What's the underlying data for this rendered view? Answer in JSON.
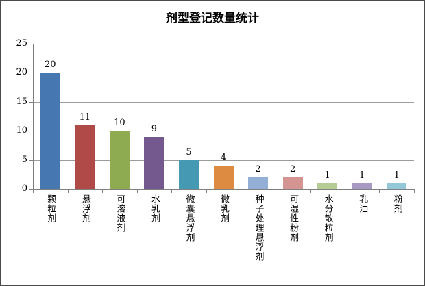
{
  "chart_data": {
    "type": "bar",
    "title": "剂型登记数量统计",
    "categories": [
      "颗粒剂",
      "悬浮剂",
      "可溶液剂",
      "水乳剂",
      "微囊悬浮剂",
      "微乳剂",
      "种子处理悬浮剂",
      "可湿性粉剂",
      "水分散粒剂",
      "乳油",
      "粉剂"
    ],
    "values": [
      20,
      11,
      10,
      9,
      5,
      4,
      2,
      2,
      1,
      1,
      1
    ],
    "bar_colors": [
      "#4777B1",
      "#AF4A48",
      "#8FAB51",
      "#74598E",
      "#4699B2",
      "#DC8B40",
      "#94AFD6",
      "#D39492",
      "#B5CC94",
      "#A799C1",
      "#92C8D8"
    ],
    "xlabel": "",
    "ylabel": "",
    "ylim": [
      0,
      25
    ],
    "yticks": [
      0,
      5,
      10,
      15,
      20,
      25
    ],
    "grid": true,
    "data_labels": true,
    "legend": "none",
    "gridline_color": "#9c9c9c",
    "axis_color": "#808080",
    "text_color": "#000000"
  }
}
